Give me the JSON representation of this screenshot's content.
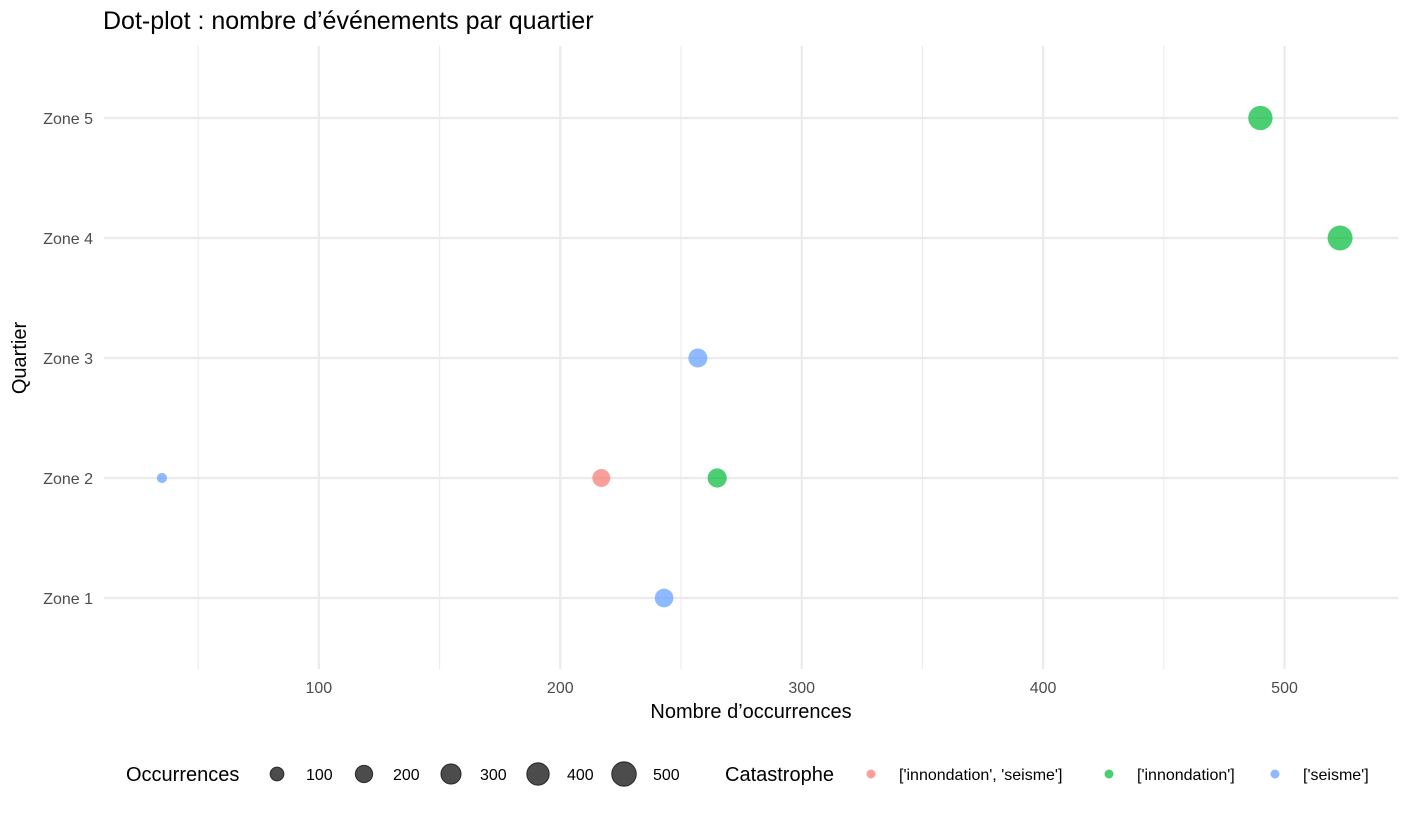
{
  "chart_data": {
    "type": "scatter",
    "title": "Dot-plot : nombre d’événements par quartier",
    "xlabel": "Nombre d’occurrences",
    "ylabel": "Quartier",
    "xlim": [
      11,
      547
    ],
    "x_ticks": [
      100,
      200,
      300,
      400,
      500
    ],
    "x_minor_ticks": [
      50,
      150,
      250,
      350,
      450
    ],
    "categories": [
      "Zone 1",
      "Zone 2",
      "Zone 3",
      "Zone 4",
      "Zone 5"
    ],
    "grid": true,
    "legend_position": "bottom",
    "size_legend": {
      "title": "Occurrences",
      "values": [
        100,
        200,
        300,
        400,
        500
      ],
      "labels": [
        "100",
        "200",
        "300",
        "400",
        "500"
      ]
    },
    "color_legend": {
      "title": "Catastrophe",
      "entries": [
        {
          "label": "['innondation', 'seisme']",
          "color": "#F8766D"
        },
        {
          "label": "['innondation']",
          "color": "#00BA38"
        },
        {
          "label": "['seisme']",
          "color": "#619CFF"
        }
      ]
    },
    "points": [
      {
        "zone": "Zone 1",
        "x": 243,
        "series": 2
      },
      {
        "zone": "Zone 2",
        "x": 35,
        "series": 2
      },
      {
        "zone": "Zone 2",
        "x": 217,
        "series": 0
      },
      {
        "zone": "Zone 2",
        "x": 265,
        "series": 1
      },
      {
        "zone": "Zone 3",
        "x": 257,
        "series": 2
      },
      {
        "zone": "Zone 4",
        "x": 523,
        "series": 1
      },
      {
        "zone": "Zone 5",
        "x": 490,
        "series": 1
      }
    ]
  }
}
